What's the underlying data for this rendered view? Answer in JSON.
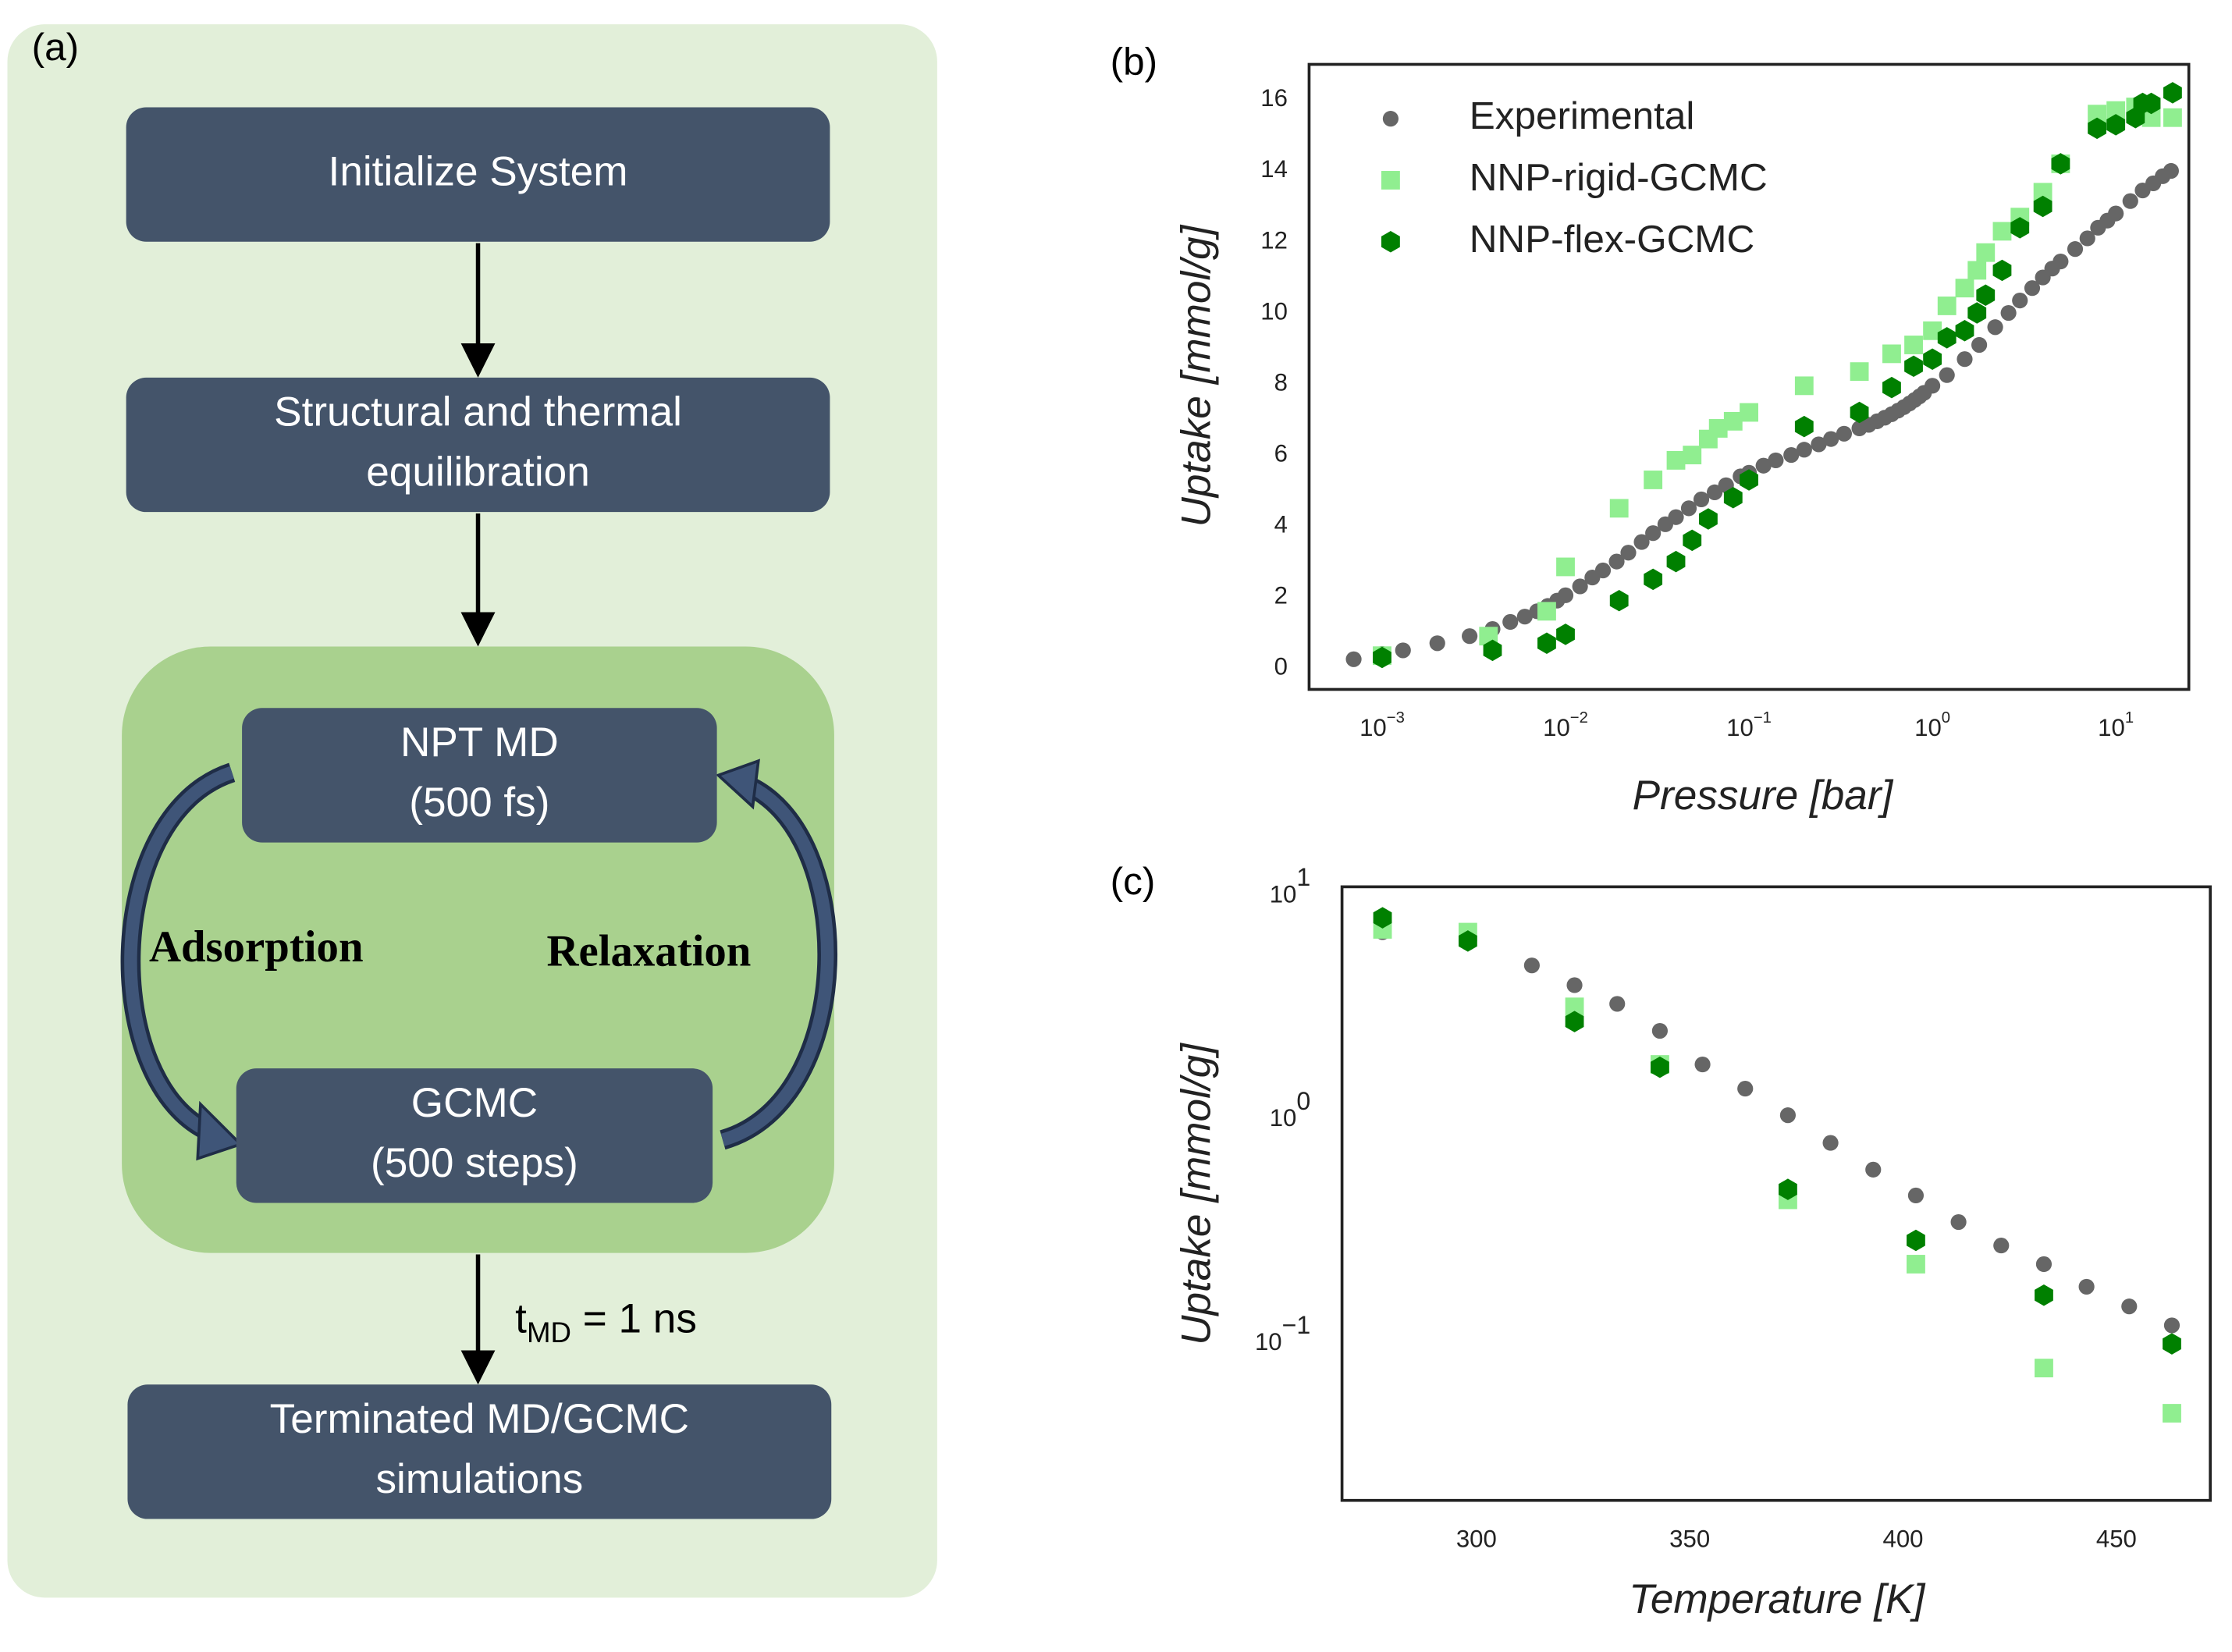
{
  "panel_labels": [
    "(a)",
    "(b)",
    "(c)"
  ],
  "diagram": {
    "nodes": [
      {
        "lines": [
          "Initialize System"
        ]
      },
      {
        "lines": [
          "Structural and thermal",
          "equilibration"
        ]
      },
      {
        "lines": [
          "NPT MD",
          "(500 fs)"
        ]
      },
      {
        "lines": [
          "GCMC",
          "(500 steps)"
        ]
      },
      {
        "lines": [
          "Terminated MD/GCMC",
          "simulations"
        ]
      }
    ],
    "loop_labels": [
      "Adsorption",
      "Relaxation"
    ],
    "edge_label": {
      "text": "t",
      "subscript": "MD",
      "suffix": " = 1 ns"
    }
  },
  "chart_data": [
    {
      "type": "scatter",
      "xlabel": "Pressure [bar]",
      "ylabel": "Uptake [mmol/g]",
      "xscale": "log",
      "yscale": "linear",
      "xlim": [
        0.0004,
        25
      ],
      "ylim": [
        -0.6,
        17
      ],
      "xticks": [
        {
          "value": 0.001,
          "label": "10",
          "exponent": "−3"
        },
        {
          "value": 0.01,
          "label": "10",
          "exponent": "−2"
        },
        {
          "value": 0.1,
          "label": "10",
          "exponent": "−1"
        },
        {
          "value": 1,
          "label": "10",
          "exponent": "0"
        },
        {
          "value": 10,
          "label": "10",
          "exponent": "1"
        }
      ],
      "yticks": [
        0,
        2,
        4,
        6,
        8,
        10,
        12,
        14,
        16
      ],
      "grid": false,
      "legend": "upper left",
      "series": [
        {
          "name": "Experimental",
          "color": "#666666",
          "marker": "circle",
          "x": [
            0.0007,
            0.001,
            0.0013,
            0.002,
            0.003,
            0.004,
            0.005,
            0.006,
            0.007,
            0.008,
            0.009,
            0.01,
            0.012,
            0.014,
            0.016,
            0.019,
            0.022,
            0.026,
            0.03,
            0.035,
            0.04,
            0.047,
            0.055,
            0.065,
            0.075,
            0.09,
            0.1,
            0.12,
            0.14,
            0.17,
            0.2,
            0.24,
            0.28,
            0.33,
            0.4,
            0.45,
            0.5,
            0.55,
            0.6,
            0.65,
            0.7,
            0.75,
            0.8,
            0.85,
            0.9,
            1.0,
            1.2,
            1.5,
            1.8,
            2.2,
            2.6,
            3.0,
            3.5,
            4.0,
            4.5,
            5.0,
            6.0,
            7.0,
            8.0,
            9.0,
            10,
            12,
            14,
            16,
            18,
            20
          ],
          "values": [
            0.25,
            0.4,
            0.5,
            0.7,
            0.9,
            1.1,
            1.3,
            1.45,
            1.6,
            1.75,
            1.9,
            2.05,
            2.3,
            2.55,
            2.75,
            3.0,
            3.25,
            3.55,
            3.8,
            4.05,
            4.25,
            4.5,
            4.75,
            4.95,
            5.15,
            5.4,
            5.5,
            5.7,
            5.85,
            6.0,
            6.15,
            6.3,
            6.45,
            6.6,
            6.75,
            6.85,
            6.95,
            7.05,
            7.15,
            7.25,
            7.35,
            7.45,
            7.55,
            7.65,
            7.75,
            7.95,
            8.25,
            8.7,
            9.1,
            9.6,
            10.0,
            10.35,
            10.7,
            11.0,
            11.25,
            11.45,
            11.8,
            12.1,
            12.4,
            12.6,
            12.8,
            13.15,
            13.45,
            13.65,
            13.85,
            14.0
          ]
        },
        {
          "name": "NNP-rigid-GCMC",
          "color": "#90ee90",
          "marker": "square",
          "x": [
            0.001,
            0.0038,
            0.0079,
            0.01,
            0.0196,
            0.03,
            0.04,
            0.049,
            0.06,
            0.068,
            0.082,
            0.1,
            0.2,
            0.4,
            0.6,
            0.79,
            1.0,
            1.2,
            1.5,
            1.75,
            1.95,
            2.4,
            3.0,
            4.0,
            5.0,
            7.9,
            10,
            12.8,
            15.6,
            20.4
          ],
          "values": [
            0.35,
            0.9,
            1.6,
            2.85,
            4.5,
            5.3,
            5.85,
            6.0,
            6.45,
            6.75,
            6.95,
            7.2,
            7.95,
            8.35,
            8.85,
            9.1,
            9.5,
            10.2,
            10.7,
            11.2,
            11.7,
            12.3,
            12.7,
            13.4,
            14.2,
            15.6,
            15.7,
            15.8,
            15.5,
            15.5
          ]
        },
        {
          "name": "NNP-flex-GCMC",
          "color": "#008000",
          "marker": "hexagon",
          "x": [
            0.001,
            0.004,
            0.0079,
            0.01,
            0.0196,
            0.03,
            0.04,
            0.049,
            0.06,
            0.082,
            0.1,
            0.2,
            0.4,
            0.6,
            0.79,
            1.0,
            1.2,
            1.5,
            1.75,
            1.95,
            2.4,
            3.0,
            4.0,
            5.0,
            7.9,
            10,
            12.8,
            14,
            15.6,
            20.4
          ],
          "values": [
            0.3,
            0.5,
            0.7,
            0.95,
            1.9,
            2.5,
            3.0,
            3.6,
            4.2,
            4.8,
            5.3,
            6.8,
            7.2,
            7.9,
            8.5,
            8.7,
            9.3,
            9.5,
            10.0,
            10.5,
            11.2,
            12.4,
            13.0,
            14.2,
            15.2,
            15.3,
            15.5,
            15.9,
            15.9,
            16.2
          ]
        }
      ]
    },
    {
      "type": "scatter",
      "xlabel": "Temperature [K]",
      "ylabel": "Uptake [mmol/g]",
      "xscale": "linear",
      "yscale": "log",
      "xlim": [
        268.5,
        472
      ],
      "ylim": [
        0.02,
        11
      ],
      "xticks": [
        300,
        350,
        400,
        450
      ],
      "yticks": [
        {
          "value": 10,
          "label": "10",
          "exponent": "1"
        },
        {
          "value": 1,
          "label": "10",
          "exponent": "0"
        },
        {
          "value": 0.1,
          "label": "10",
          "exponent": "−1"
        }
      ],
      "grid": false,
      "series": [
        {
          "color": "#666666",
          "marker": "circle",
          "x": [
            278,
            298,
            313,
            323,
            333,
            343,
            353,
            363,
            373,
            383,
            393,
            403,
            413,
            423,
            433,
            443,
            453,
            463
          ],
          "values": [
            6.9,
            6.2,
            4.9,
            4.0,
            3.3,
            2.5,
            1.77,
            1.38,
            1.05,
            0.79,
            0.6,
            0.46,
            0.35,
            0.275,
            0.227,
            0.18,
            0.147,
            0.121
          ]
        },
        {
          "color": "#90ee90",
          "marker": "square",
          "x": [
            278,
            298,
            323,
            343,
            373,
            403,
            433,
            463
          ],
          "values": [
            7.1,
            6.9,
            3.2,
            1.77,
            0.44,
            0.227,
            0.078,
            0.049
          ]
        },
        {
          "color": "#008000",
          "marker": "hexagon",
          "x": [
            278,
            298,
            323,
            343,
            373,
            403,
            433,
            463
          ],
          "values": [
            8.0,
            6.3,
            2.75,
            1.72,
            0.49,
            0.29,
            0.165,
            0.1
          ]
        }
      ]
    }
  ]
}
